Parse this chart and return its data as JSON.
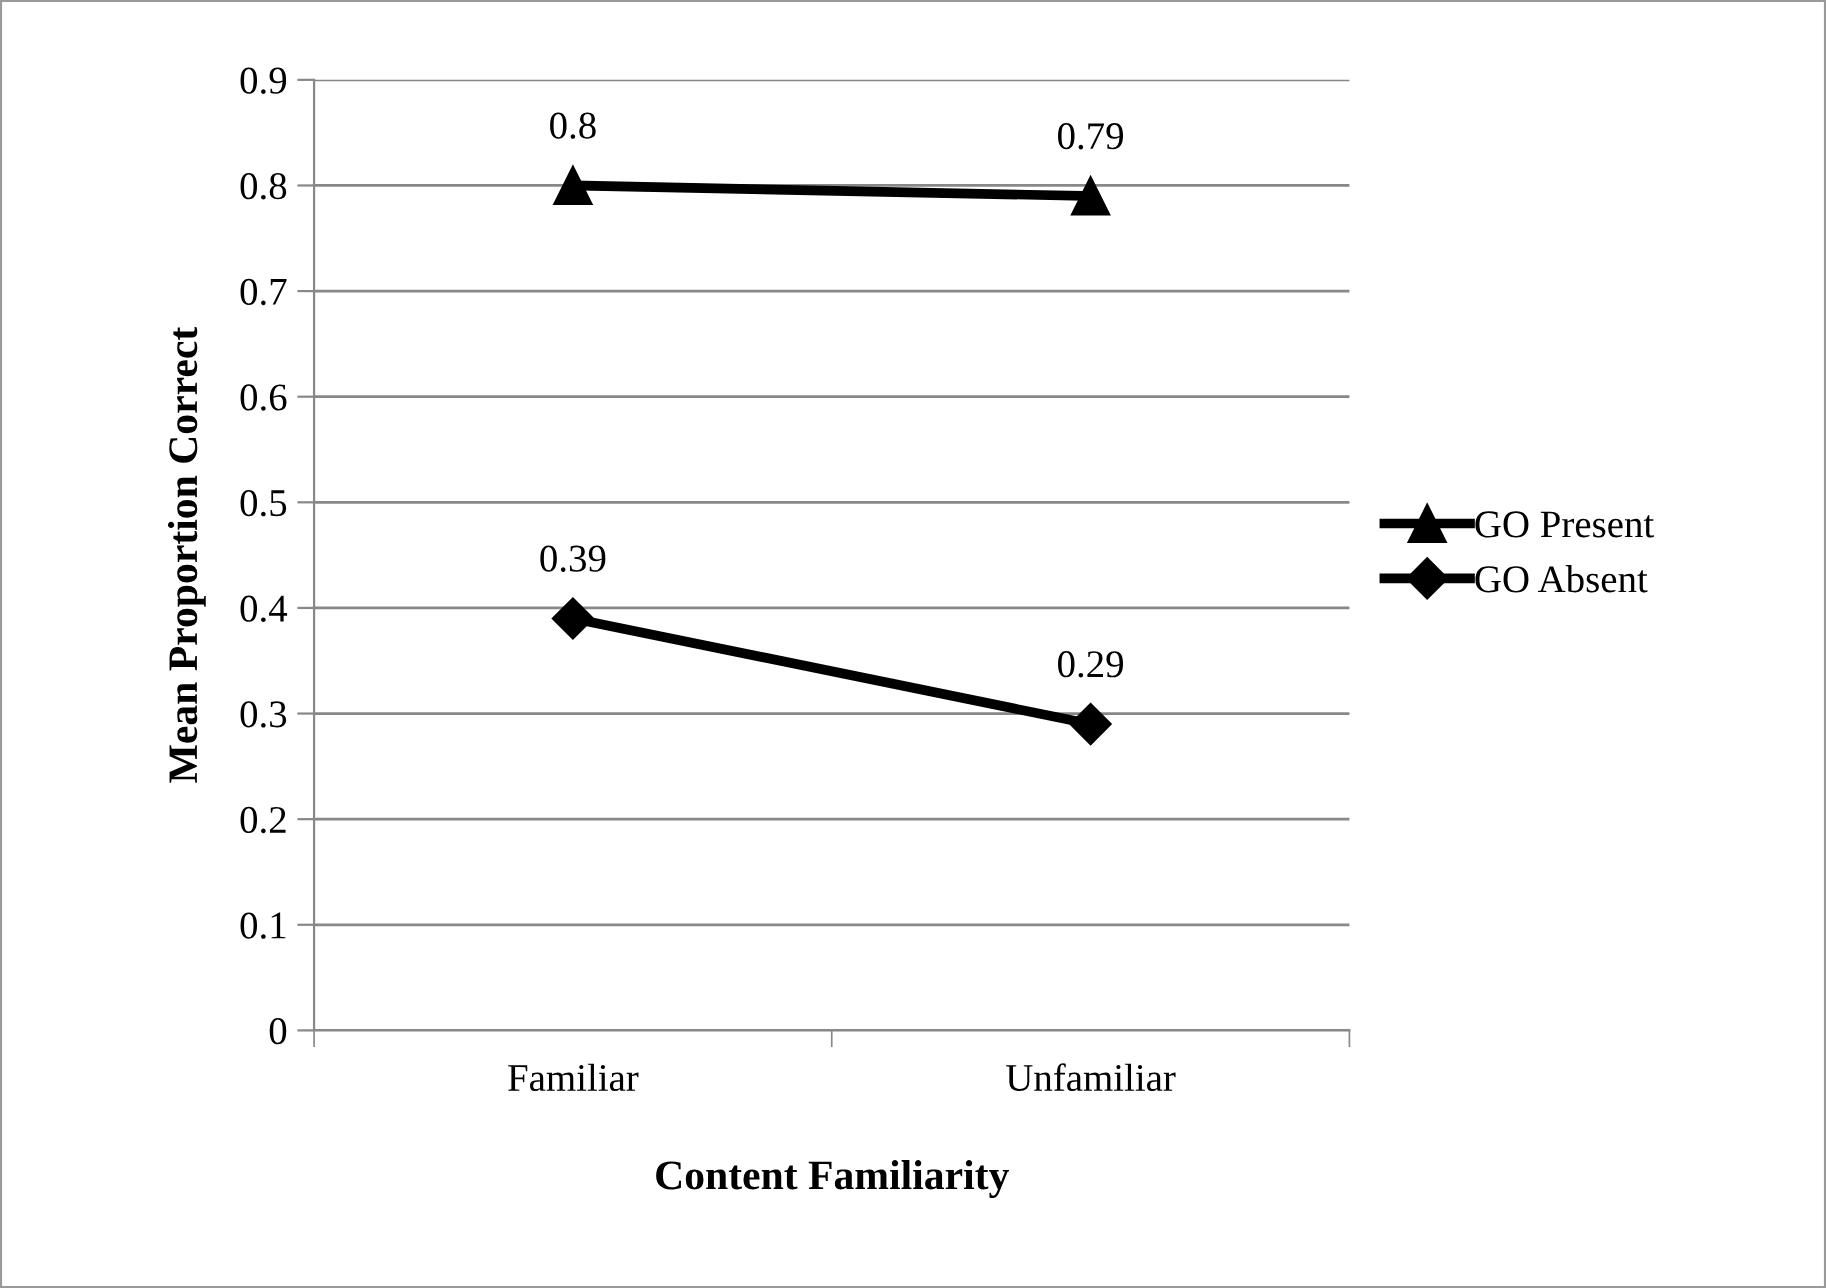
{
  "chart_data": {
    "type": "line",
    "xlabel": "Content Familiarity",
    "ylabel": "Mean Proportion Correct",
    "categories": [
      "Familiar",
      "Unfamiliar"
    ],
    "series": [
      {
        "name": "GO Present",
        "color": "#000000",
        "marker": "triangle",
        "values": [
          0.8,
          0.79
        ]
      },
      {
        "name": "GO Absent",
        "color": "#000000",
        "marker": "diamond",
        "values": [
          0.39,
          0.29
        ]
      }
    ],
    "ylim": [
      0,
      0.9
    ],
    "yticks": [
      0,
      0.1,
      0.2,
      0.3,
      0.4,
      0.5,
      0.6,
      0.7,
      0.8,
      0.9
    ],
    "grid": "y",
    "legend": "right",
    "data_labels": true,
    "line_style": "solid"
  }
}
